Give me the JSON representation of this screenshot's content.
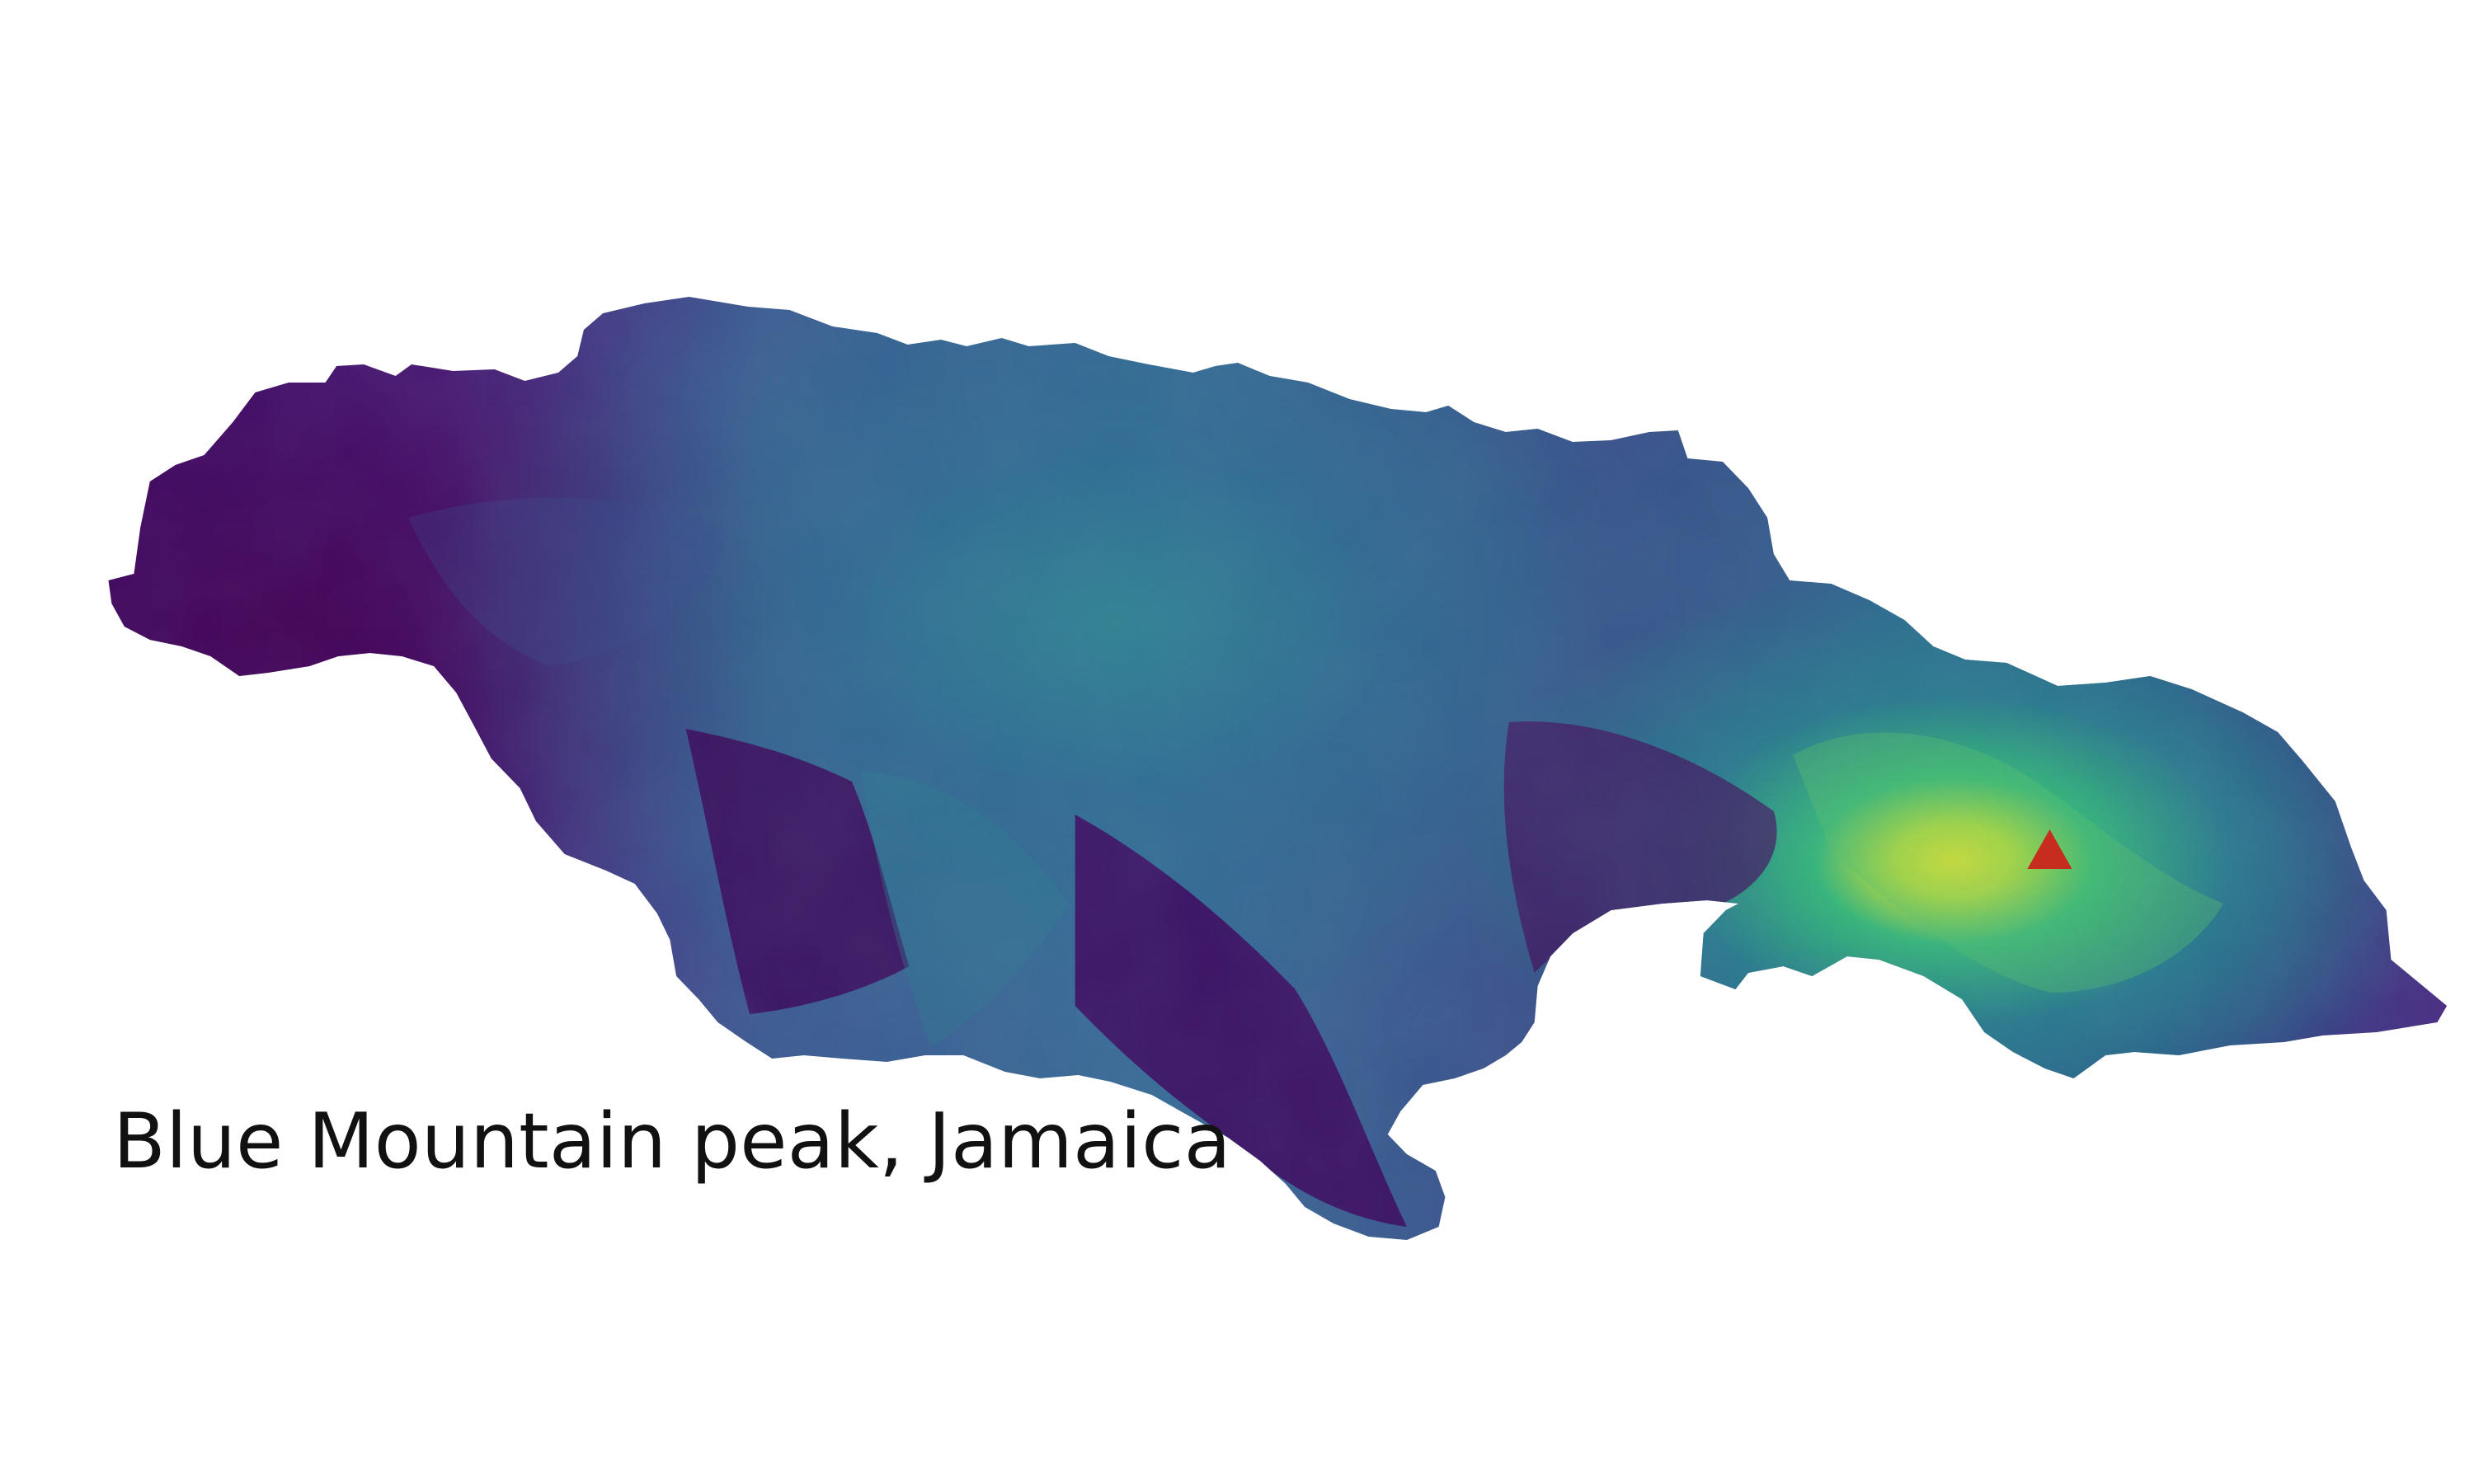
{
  "caption": "Blue Mountain peak, Jamaica",
  "colors": {
    "background": "#ffffff",
    "low_elevation": "#440154",
    "mid_elevation": "#31688e",
    "high_elevation": "#35b779",
    "peak_elevation": "#fde725",
    "peak_marker": "#c62d1e",
    "caption_text": "#111111"
  },
  "icons": {
    "peak_marker": "red-triangle-marker"
  }
}
